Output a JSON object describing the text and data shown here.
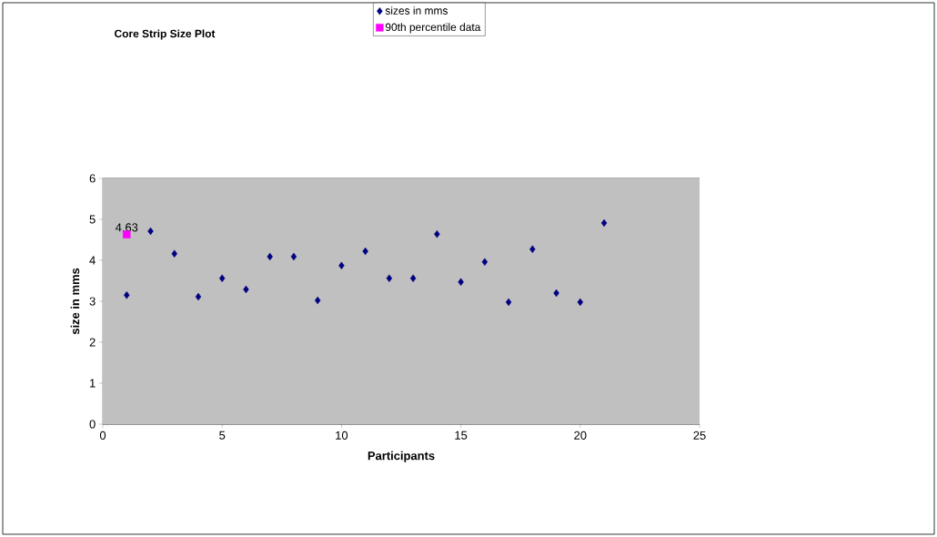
{
  "chart_data": {
    "type": "scatter",
    "title": "Core Strip Size Plot",
    "xlabel": "Participants",
    "ylabel": "size in mms",
    "series": [
      {
        "name": "sizes in mms",
        "color": "#000080",
        "marker": "diamond",
        "x": [
          1,
          2,
          3,
          4,
          5,
          6,
          7,
          8,
          9,
          10,
          11,
          12,
          13,
          14,
          15,
          16,
          17,
          18,
          19,
          20,
          21
        ],
        "values": [
          3.15,
          4.71,
          4.16,
          3.11,
          3.56,
          3.29,
          4.09,
          4.09,
          3.02,
          3.87,
          4.22,
          3.56,
          3.56,
          4.64,
          3.47,
          3.96,
          2.98,
          4.27,
          3.2,
          2.98,
          4.91
        ]
      },
      {
        "name": "90th percentile data",
        "color": "#ff00ff",
        "marker": "square",
        "x": [
          1
        ],
        "values": [
          4.63
        ],
        "value_labels": [
          "4.63"
        ]
      }
    ],
    "xlim": [
      0,
      25
    ],
    "xticks": [
      0,
      5,
      10,
      15,
      20,
      25
    ],
    "ylim": [
      0,
      6
    ],
    "yticks": [
      0,
      1,
      2,
      3,
      4,
      5,
      6
    ],
    "grid": "y",
    "legend": "top"
  }
}
